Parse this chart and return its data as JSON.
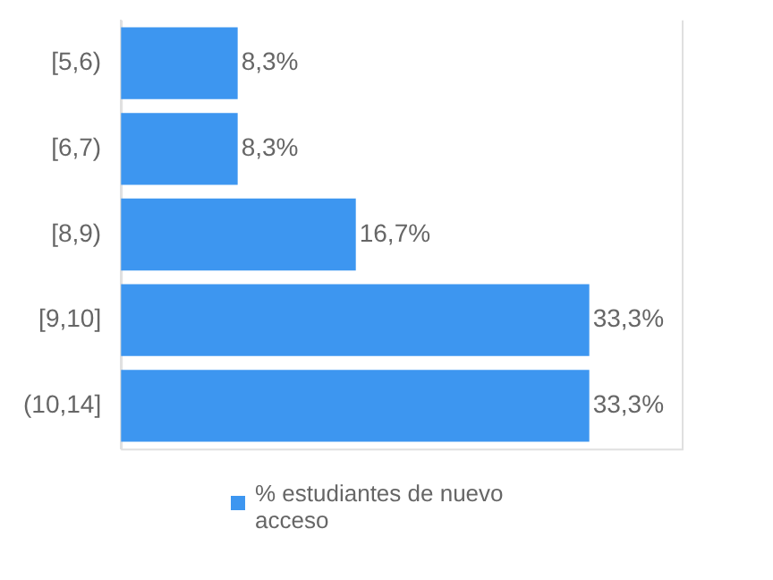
{
  "chart_data": {
    "type": "bar",
    "orientation": "horizontal",
    "categories": [
      "[5,6)",
      "[6,7)",
      "[8,9)",
      "[9,10]",
      "(10,14]"
    ],
    "series": [
      {
        "name": "% estudiantes de nuevo acceso",
        "color": "#3d96f0",
        "values": [
          8.3,
          8.3,
          16.7,
          33.3,
          33.3
        ],
        "value_labels": [
          "8,3%",
          "8,3%",
          "16,7%",
          "33,3%",
          "33,3%"
        ]
      }
    ],
    "xlim": [
      0,
      40
    ],
    "tick_labels": "y",
    "legend": "bottom"
  }
}
